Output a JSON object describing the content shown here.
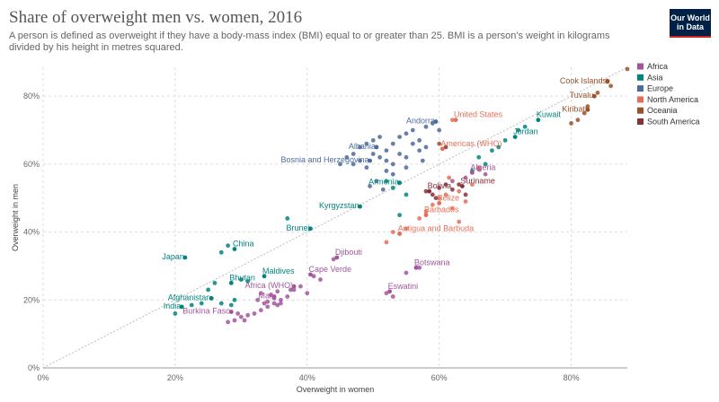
{
  "header": {
    "title": "Share of overweight men vs. women, 2016",
    "subtitle": "A person is defined as overweight if they have a body-mass index (BMI) equal to or greater than 25. BMI is a person's weight in kilograms divided by his height in metres squared.",
    "logo_line1": "Our World",
    "logo_line2": "in Data"
  },
  "colors": {
    "Africa": "#a2559c",
    "Asia": "#00847e",
    "Europe": "#4c6a9c",
    "North America": "#e56e5a",
    "Oceania": "#9a5129",
    "South America": "#883039"
  },
  "chart_data": {
    "type": "scatter",
    "title": "Share of overweight men vs. women, 2016",
    "xlabel": "Overweight in women",
    "ylabel": "Overweight in men",
    "xlim": [
      0,
      88.5
    ],
    "ylim": [
      0,
      88.5
    ],
    "x_ticks": [
      "0%",
      "20%",
      "40%",
      "60%",
      "80%"
    ],
    "y_ticks": [
      "0%",
      "20%",
      "40%",
      "60%",
      "80%"
    ],
    "grid": true,
    "diagonal_line": true,
    "legend_position": "right",
    "legend": [
      "Africa",
      "Asia",
      "Europe",
      "North America",
      "Oceania",
      "South America"
    ],
    "labeled_points": [
      {
        "label": "Cook Islands",
        "region": "Oceania",
        "x": 85.5,
        "y": 84.3
      },
      {
        "label": "Tuvalu",
        "region": "Oceania",
        "x": 83.5,
        "y": 80.0
      },
      {
        "label": "Kiribati",
        "region": "Oceania",
        "x": 82.5,
        "y": 76.0
      },
      {
        "label": "Kuwait",
        "region": "Asia",
        "x": 75.0,
        "y": 73.0
      },
      {
        "label": "Jordan",
        "region": "Asia",
        "x": 71.5,
        "y": 68.0
      },
      {
        "label": "United States",
        "region": "North America",
        "x": 62.5,
        "y": 73.0
      },
      {
        "label": "Andorra",
        "region": "Europe",
        "x": 59.5,
        "y": 72.5
      },
      {
        "label": "Americas (WHO)",
        "region": "North America",
        "x": 60.5,
        "y": 64.5
      },
      {
        "label": "Albania",
        "region": "Europe",
        "x": 50.5,
        "y": 65.0
      },
      {
        "label": "Bosnia and Herzegovina",
        "region": "Europe",
        "x": 49.5,
        "y": 61.0
      },
      {
        "label": "Algeria",
        "region": "Africa",
        "x": 65.0,
        "y": 57.5
      },
      {
        "label": "Armenia",
        "region": "Asia",
        "x": 54.0,
        "y": 54.5
      },
      {
        "label": "Suriname",
        "region": "South America",
        "x": 63.5,
        "y": 53.5
      },
      {
        "label": "Bolivia",
        "region": "South America",
        "x": 58.5,
        "y": 52.0
      },
      {
        "label": "Kyrgyzstan",
        "region": "Asia",
        "x": 48.0,
        "y": 47.5
      },
      {
        "label": "Belize",
        "region": "North America",
        "x": 60.0,
        "y": 48.5
      },
      {
        "label": "Barbados",
        "region": "North America",
        "x": 58.0,
        "y": 45.0
      },
      {
        "label": "Brunei",
        "region": "Asia",
        "x": 40.5,
        "y": 41.0
      },
      {
        "label": "Antigua and Barbuda",
        "region": "North America",
        "x": 54.0,
        "y": 39.5
      },
      {
        "label": "Japan",
        "region": "Asia",
        "x": 21.5,
        "y": 32.5
      },
      {
        "label": "China",
        "region": "Asia",
        "x": 29.0,
        "y": 35.0
      },
      {
        "label": "Djibouti",
        "region": "Africa",
        "x": 44.5,
        "y": 32.5
      },
      {
        "label": "Botswana",
        "region": "Africa",
        "x": 56.5,
        "y": 29.5
      },
      {
        "label": "Cape Verde",
        "region": "Africa",
        "x": 40.5,
        "y": 27.5
      },
      {
        "label": "Bhutan",
        "region": "Asia",
        "x": 28.5,
        "y": 25.0
      },
      {
        "label": "Maldives",
        "region": "Asia",
        "x": 33.5,
        "y": 27.0
      },
      {
        "label": "Africa (WHO)",
        "region": "Africa",
        "x": 38.0,
        "y": 24.0
      },
      {
        "label": "Eswatini",
        "region": "Africa",
        "x": 52.5,
        "y": 22.5
      },
      {
        "label": "Afghanistan",
        "region": "Asia",
        "x": 25.5,
        "y": 20.5
      },
      {
        "label": "Mali",
        "region": "Africa",
        "x": 35.0,
        "y": 21.0
      },
      {
        "label": "India",
        "region": "Asia",
        "x": 21.0,
        "y": 18.0
      },
      {
        "label": "Burkina Faso",
        "region": "Africa",
        "x": 28.5,
        "y": 16.5
      }
    ],
    "points": [
      {
        "region": "Europe",
        "x": 45,
        "y": 60
      },
      {
        "region": "Europe",
        "x": 46,
        "y": 62
      },
      {
        "region": "Europe",
        "x": 47,
        "y": 63
      },
      {
        "region": "Europe",
        "x": 48,
        "y": 65
      },
      {
        "region": "Europe",
        "x": 49,
        "y": 66
      },
      {
        "region": "Europe",
        "x": 50,
        "y": 67
      },
      {
        "region": "Europe",
        "x": 51,
        "y": 68
      },
      {
        "region": "Europe",
        "x": 52,
        "y": 64
      },
      {
        "region": "Europe",
        "x": 53,
        "y": 66
      },
      {
        "region": "Europe",
        "x": 54,
        "y": 68
      },
      {
        "region": "Europe",
        "x": 55,
        "y": 69
      },
      {
        "region": "Europe",
        "x": 56,
        "y": 70
      },
      {
        "region": "Europe",
        "x": 57,
        "y": 67
      },
      {
        "region": "Europe",
        "x": 58,
        "y": 71
      },
      {
        "region": "Europe",
        "x": 59,
        "y": 72
      },
      {
        "region": "Europe",
        "x": 60,
        "y": 70
      },
      {
        "region": "Europe",
        "x": 47,
        "y": 60
      },
      {
        "region": "Europe",
        "x": 48,
        "y": 61
      },
      {
        "region": "Europe",
        "x": 49,
        "y": 59
      },
      {
        "region": "Europe",
        "x": 50,
        "y": 63
      },
      {
        "region": "Europe",
        "x": 51,
        "y": 62
      },
      {
        "region": "Europe",
        "x": 52,
        "y": 61
      },
      {
        "region": "Europe",
        "x": 53,
        "y": 60
      },
      {
        "region": "Europe",
        "x": 54,
        "y": 63
      },
      {
        "region": "Europe",
        "x": 55,
        "y": 62
      },
      {
        "region": "Europe",
        "x": 56,
        "y": 66
      },
      {
        "region": "Europe",
        "x": 57,
        "y": 64
      },
      {
        "region": "Europe",
        "x": 58,
        "y": 65
      },
      {
        "region": "Europe",
        "x": 49.5,
        "y": 53.5
      },
      {
        "region": "Europe",
        "x": 51.5,
        "y": 52.5
      },
      {
        "region": "Europe",
        "x": 50.5,
        "y": 55
      },
      {
        "region": "Europe",
        "x": 55,
        "y": 59
      },
      {
        "region": "Europe",
        "x": 53,
        "y": 57
      },
      {
        "region": "Europe",
        "x": 52,
        "y": 58
      },
      {
        "region": "Europe",
        "x": 57.5,
        "y": 61
      },
      {
        "region": "Asia",
        "x": 52,
        "y": 55
      },
      {
        "region": "Asia",
        "x": 53,
        "y": 53
      },
      {
        "region": "Asia",
        "x": 55,
        "y": 51
      },
      {
        "region": "Asia",
        "x": 37,
        "y": 44
      },
      {
        "region": "Asia",
        "x": 54,
        "y": 45
      },
      {
        "region": "Asia",
        "x": 65,
        "y": 58
      },
      {
        "region": "Asia",
        "x": 66,
        "y": 62
      },
      {
        "region": "Asia",
        "x": 68,
        "y": 64
      },
      {
        "region": "Asia",
        "x": 69,
        "y": 65
      },
      {
        "region": "Asia",
        "x": 70,
        "y": 67
      },
      {
        "region": "Asia",
        "x": 72,
        "y": 70
      },
      {
        "region": "Asia",
        "x": 73,
        "y": 71
      },
      {
        "region": "Asia",
        "x": 67,
        "y": 60
      },
      {
        "region": "Asia",
        "x": 25,
        "y": 23
      },
      {
        "region": "Asia",
        "x": 26,
        "y": 25
      },
      {
        "region": "Asia",
        "x": 30,
        "y": 26
      },
      {
        "region": "Asia",
        "x": 27,
        "y": 34
      },
      {
        "region": "Asia",
        "x": 28,
        "y": 36
      },
      {
        "region": "Asia",
        "x": 24,
        "y": 19
      },
      {
        "region": "Asia",
        "x": 20,
        "y": 16
      },
      {
        "region": "Asia",
        "x": 22.5,
        "y": 18.5
      },
      {
        "region": "Asia",
        "x": 27,
        "y": 19
      },
      {
        "region": "Asia",
        "x": 28.5,
        "y": 18.5
      },
      {
        "region": "Asia",
        "x": 29,
        "y": 20
      },
      {
        "region": "Asia",
        "x": 31,
        "y": 25.5
      },
      {
        "region": "Africa",
        "x": 66,
        "y": 58.5
      },
      {
        "region": "Africa",
        "x": 67,
        "y": 57
      },
      {
        "region": "Africa",
        "x": 62,
        "y": 55
      },
      {
        "region": "Africa",
        "x": 64,
        "y": 56
      },
      {
        "region": "Africa",
        "x": 41,
        "y": 27
      },
      {
        "region": "Africa",
        "x": 42,
        "y": 26
      },
      {
        "region": "Africa",
        "x": 44,
        "y": 32
      },
      {
        "region": "Africa",
        "x": 55,
        "y": 28
      },
      {
        "region": "Africa",
        "x": 57,
        "y": 29.5
      },
      {
        "region": "Africa",
        "x": 52,
        "y": 22
      },
      {
        "region": "Africa",
        "x": 53,
        "y": 21
      },
      {
        "region": "Africa",
        "x": 36,
        "y": 20
      },
      {
        "region": "Africa",
        "x": 35,
        "y": 19
      },
      {
        "region": "Africa",
        "x": 34,
        "y": 18
      },
      {
        "region": "Africa",
        "x": 33,
        "y": 17
      },
      {
        "region": "Africa",
        "x": 32,
        "y": 16
      },
      {
        "region": "Africa",
        "x": 30,
        "y": 15
      },
      {
        "region": "Africa",
        "x": 29,
        "y": 14
      },
      {
        "region": "Africa",
        "x": 28,
        "y": 13.5
      },
      {
        "region": "Africa",
        "x": 30.5,
        "y": 14
      },
      {
        "region": "Africa",
        "x": 31,
        "y": 15.5
      },
      {
        "region": "Africa",
        "x": 34,
        "y": 19.5
      },
      {
        "region": "Africa",
        "x": 35,
        "y": 20.5
      },
      {
        "region": "Africa",
        "x": 36,
        "y": 19
      },
      {
        "region": "Africa",
        "x": 37,
        "y": 21
      },
      {
        "region": "Africa",
        "x": 38,
        "y": 23
      },
      {
        "region": "Africa",
        "x": 39,
        "y": 24
      },
      {
        "region": "Africa",
        "x": 40,
        "y": 22
      },
      {
        "region": "Africa",
        "x": 33,
        "y": 22
      },
      {
        "region": "Africa",
        "x": 34.5,
        "y": 21.5
      },
      {
        "region": "Africa",
        "x": 35.5,
        "y": 22.5
      },
      {
        "region": "Africa",
        "x": 37.5,
        "y": 23
      },
      {
        "region": "Africa",
        "x": 32.5,
        "y": 20
      },
      {
        "region": "Africa",
        "x": 33.5,
        "y": 19
      },
      {
        "region": "Africa",
        "x": 35.5,
        "y": 18.5
      },
      {
        "region": "Africa",
        "x": 29.5,
        "y": 16
      },
      {
        "region": "North America",
        "x": 62,
        "y": 73
      },
      {
        "region": "North America",
        "x": 59,
        "y": 48
      },
      {
        "region": "North America",
        "x": 60,
        "y": 50
      },
      {
        "region": "North America",
        "x": 61,
        "y": 51
      },
      {
        "region": "North America",
        "x": 62,
        "y": 47
      },
      {
        "region": "North America",
        "x": 63,
        "y": 52
      },
      {
        "region": "North America",
        "x": 57,
        "y": 44
      },
      {
        "region": "North America",
        "x": 58,
        "y": 46
      },
      {
        "region": "North America",
        "x": 53,
        "y": 40
      },
      {
        "region": "North America",
        "x": 55,
        "y": 41
      },
      {
        "region": "North America",
        "x": 54,
        "y": 39.5
      },
      {
        "region": "North America",
        "x": 64,
        "y": 49
      },
      {
        "region": "North America",
        "x": 65,
        "y": 54
      },
      {
        "region": "North America",
        "x": 66,
        "y": 59
      },
      {
        "region": "North America",
        "x": 61.5,
        "y": 56
      },
      {
        "region": "North America",
        "x": 52,
        "y": 37
      },
      {
        "region": "North America",
        "x": 63,
        "y": 43
      },
      {
        "region": "Oceania",
        "x": 88.5,
        "y": 88
      },
      {
        "region": "Oceania",
        "x": 85.5,
        "y": 84.5
      },
      {
        "region": "Oceania",
        "x": 84,
        "y": 81
      },
      {
        "region": "Oceania",
        "x": 82.5,
        "y": 77
      },
      {
        "region": "Oceania",
        "x": 81,
        "y": 73
      },
      {
        "region": "Oceania",
        "x": 80,
        "y": 72
      },
      {
        "region": "Oceania",
        "x": 82,
        "y": 75
      },
      {
        "region": "Oceania",
        "x": 86,
        "y": 83
      },
      {
        "region": "Oceania",
        "x": 60,
        "y": 66
      },
      {
        "region": "South America",
        "x": 58,
        "y": 52
      },
      {
        "region": "South America",
        "x": 59,
        "y": 51
      },
      {
        "region": "South America",
        "x": 60,
        "y": 53
      },
      {
        "region": "South America",
        "x": 61,
        "y": 54
      },
      {
        "region": "South America",
        "x": 62,
        "y": 52.5
      },
      {
        "region": "South America",
        "x": 63,
        "y": 54
      },
      {
        "region": "South America",
        "x": 59.5,
        "y": 50
      },
      {
        "region": "South America",
        "x": 61,
        "y": 65
      },
      {
        "region": "South America",
        "x": 64,
        "y": 51
      }
    ]
  }
}
